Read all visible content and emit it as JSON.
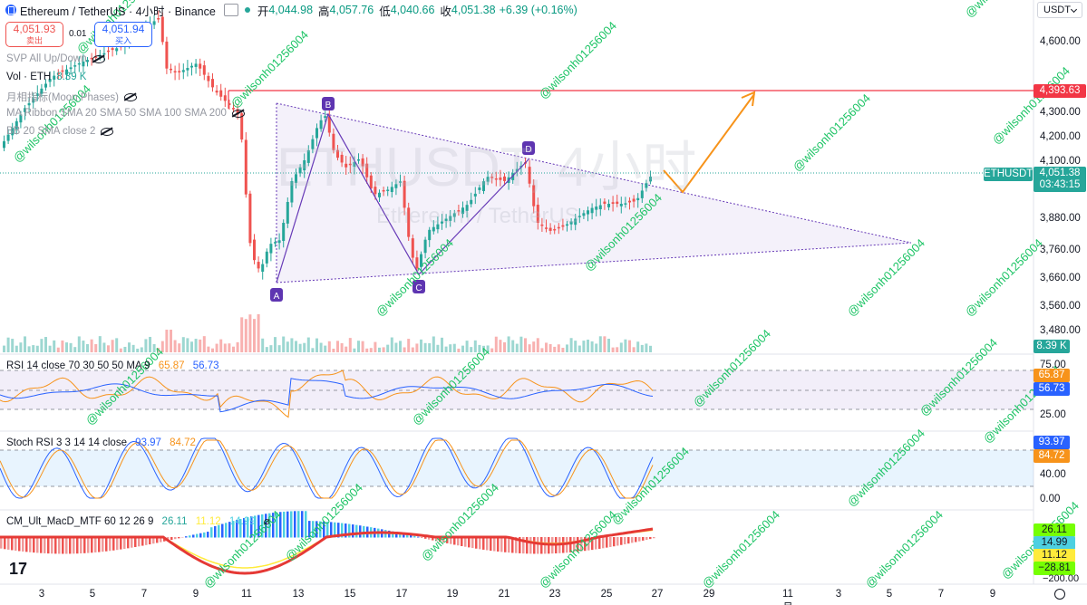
{
  "header": {
    "symbol": "Ethereum / TetherUS · 4小时 · Binance",
    "open_label": "开",
    "open": "4,044.98",
    "high_label": "高",
    "high": "4,057.76",
    "low_label": "低",
    "low": "4,040.66",
    "close_label": "收",
    "close": "4,051.38",
    "change": "+6.39 (+0.16%)"
  },
  "trade": {
    "sell_price": "4,051.93",
    "sell_label": "卖出",
    "buy_price": "4,051.94",
    "buy_label": "买入",
    "quantity": "0.01"
  },
  "currency_button": "USDT",
  "indicators": {
    "svp": "SVP All Up/Down",
    "vol_label": "Vol · ETH",
    "vol_value": "8.39 K",
    "moon": "月相指标(Moon Phases)",
    "ma": "MA Ribbon SMA 20 SMA 50 SMA 100 SMA 200",
    "bb": "BB 20 SMA close 2"
  },
  "watermark": {
    "main": "ETHUSDT, 4小时",
    "sub": "Ethereum / TetherUS"
  },
  "annotation_handle": "@wilsonh01256004",
  "pattern_points": [
    "A",
    "B",
    "C",
    "D"
  ],
  "price_axis": {
    "ticks": [
      "4,600.00",
      "4,300.00",
      "4,200.00",
      "4,100.00",
      "3,880.00",
      "3,760.00",
      "3,660.00",
      "3,560.00",
      "3,480.00"
    ],
    "resistance_value": "4,393.63",
    "symbol_tag": "ETHUSDT",
    "last_price": "4,051.38",
    "countdown": "03:43:15",
    "volume_value": "8.39 K"
  },
  "rsi_panel": {
    "label": "RSI 14 close 70 30 50 50 MA 9",
    "rsi_value": "65.87",
    "ma_value": "56.73",
    "ticks": [
      "75.00",
      "25.00"
    ],
    "rsi_color": "#f7931a",
    "ma_color": "#2962ff"
  },
  "stoch_panel": {
    "label": "Stoch RSI 3 3 14 14 close",
    "k_value": "93.97",
    "d_value": "84.72",
    "ticks": [
      "40.00",
      "0.00"
    ]
  },
  "macd_panel": {
    "label": "CM_Ult_MacD_MTF 60 12 26 9",
    "v1": "26.11",
    "v2": "11.12",
    "v3": "14.99",
    "axis_values": [
      "26.11",
      "14.99",
      "11.12",
      "−28.81"
    ],
    "tick": "−200.00"
  },
  "time_axis": [
    "3",
    "5",
    "7",
    "9",
    "11",
    "13",
    "15",
    "17",
    "19",
    "21",
    "23",
    "25",
    "27",
    "29",
    "11月",
    "3",
    "5",
    "7",
    "9"
  ],
  "logo": "17",
  "colors": {
    "up": "#26a69a",
    "down": "#ef5350",
    "resistance": "#f23645",
    "projection": "#f7931a",
    "pattern": "#673ab7"
  },
  "chart_data": {
    "type": "candlestick",
    "title": "ETHUSDT, 4小时",
    "x_range": [
      "2025-10-02",
      "2025-11-10"
    ],
    "price_range": [
      3380,
      4700
    ],
    "resistance": 4393.63,
    "last": 4051.38,
    "pattern_points": {
      "A": {
        "date": "2025-10-11 16:00",
        "price": 3600
      },
      "B": {
        "date": "2025-10-14 00:00",
        "price": 4300
      },
      "C": {
        "date": "2025-10-17 08:00",
        "price": 3620
      },
      "D": {
        "date": "2025-10-21 20:00",
        "price": 4120
      }
    },
    "projection": [
      {
        "date": "2025-10-27 04:00",
        "price": 4070
      },
      {
        "date": "2025-10-28 00:00",
        "price": 3970
      },
      {
        "date": "2025-10-29 12:00",
        "price": 4390
      }
    ],
    "triangle_apex": {
      "date": "2025-11-06",
      "price": 3790
    }
  }
}
